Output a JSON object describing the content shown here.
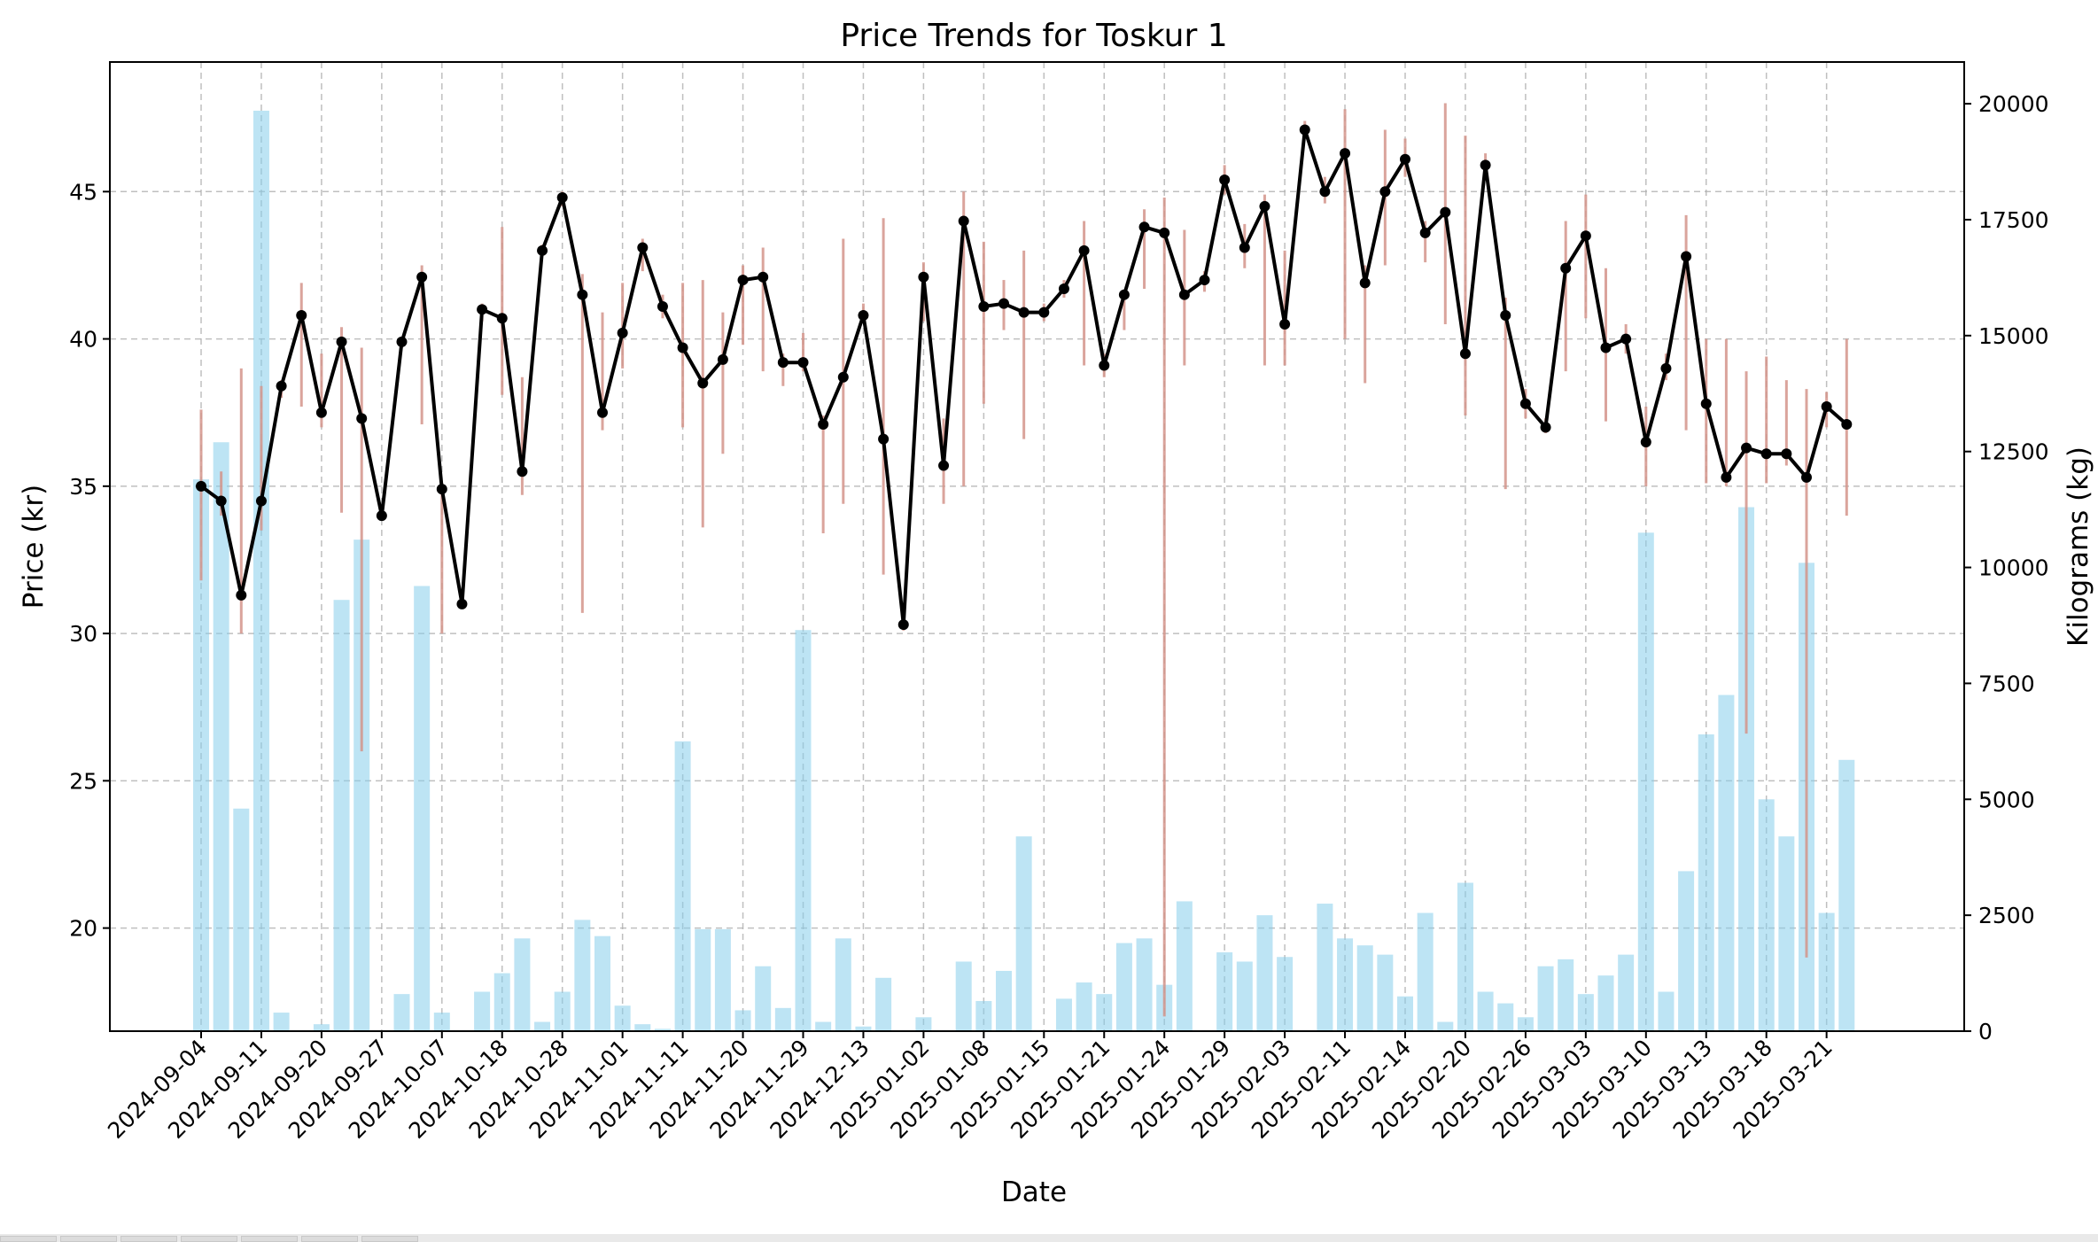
{
  "chart_data": {
    "type": "line",
    "title": "Price Trends for Toskur 1",
    "xlabel": "Date",
    "ylabel": "Price (kr)",
    "y2label": "Kilograms (kg)",
    "ylim": [
      16.5,
      49.4
    ],
    "yticks": [
      20,
      25,
      30,
      35,
      40,
      45
    ],
    "y2lim": [
      0,
      20900
    ],
    "y2ticks": [
      0,
      2500,
      5000,
      7500,
      10000,
      12500,
      15000,
      17500,
      20000
    ],
    "grid": true,
    "colors": {
      "price_line": "#000000",
      "range": "#d4958b",
      "volume": "#87ceeb"
    },
    "xtick_labels": [
      "2024-09-04",
      "2024-09-11",
      "2024-09-20",
      "2024-09-27",
      "2024-10-07",
      "2024-10-18",
      "2024-10-28",
      "2024-11-01",
      "2024-11-11",
      "2024-11-20",
      "2024-11-29",
      "2024-12-13",
      "2025-01-02",
      "2025-01-08",
      "2025-01-15",
      "2025-01-21",
      "2025-01-24",
      "2025-01-29",
      "2025-02-03",
      "2025-02-11",
      "2025-02-14",
      "2025-02-20",
      "2025-02-26",
      "2025-03-03",
      "2025-03-10",
      "2025-03-13",
      "2025-03-18",
      "2025-03-21"
    ],
    "series": [
      {
        "values": [
          35.0,
          34.5,
          31.3,
          34.5,
          38.4,
          40.8,
          37.5,
          39.9,
          37.3,
          34.0,
          39.9,
          42.1,
          34.9,
          31.0,
          41.0,
          40.7,
          35.5,
          43.0,
          44.8,
          41.5,
          37.5,
          40.2,
          43.1,
          41.1,
          39.7,
          38.5,
          39.3,
          42.0,
          42.1,
          39.2,
          39.2,
          37.1,
          38.7,
          40.8,
          36.6,
          30.3,
          42.1,
          35.7,
          44.0,
          41.1,
          41.2,
          40.9,
          40.9,
          41.7,
          43.0,
          39.1,
          41.5,
          43.8,
          43.6,
          41.5,
          42.0,
          45.4,
          43.1,
          44.5,
          40.5,
          47.1,
          45.0,
          46.3,
          41.9,
          45.0,
          46.1,
          43.6,
          44.3,
          39.5,
          45.9,
          40.8,
          37.8,
          37.0,
          42.4,
          43.5,
          39.7,
          40.0,
          36.5,
          39.0,
          42.8,
          37.8,
          35.3,
          36.3,
          36.1,
          36.1,
          35.3,
          37.7,
          37.1
        ]
      }
    ],
    "price_ranges": [
      [
        31.8,
        37.6
      ],
      [
        34.0,
        35.5
      ],
      [
        30.0,
        39.0
      ],
      [
        33.5,
        38.4
      ],
      [
        38.0,
        38.6
      ],
      [
        37.7,
        41.9
      ],
      [
        37.0,
        39.5
      ],
      [
        34.1,
        40.4
      ],
      [
        26.0,
        39.7
      ],
      [
        34.0,
        34.1
      ],
      [
        39.7,
        40.0
      ],
      [
        37.1,
        42.5
      ],
      [
        30.0,
        35.1
      ],
      [
        30.9,
        31.1
      ],
      [
        40.6,
        41.2
      ],
      [
        38.1,
        43.8
      ],
      [
        34.7,
        38.7
      ],
      [
        42.8,
        43.2
      ],
      [
        44.5,
        45.0
      ],
      [
        30.7,
        42.2
      ],
      [
        36.9,
        40.9
      ],
      [
        39.0,
        41.9
      ],
      [
        42.3,
        43.4
      ],
      [
        40.7,
        41.5
      ],
      [
        37.0,
        41.9
      ],
      [
        33.6,
        42.0
      ],
      [
        36.1,
        40.9
      ],
      [
        39.8,
        42.5
      ],
      [
        38.9,
        43.1
      ],
      [
        38.4,
        39.5
      ],
      [
        38.9,
        40.2
      ],
      [
        33.4,
        37.4
      ],
      [
        34.4,
        43.4
      ],
      [
        40.6,
        41.2
      ],
      [
        32.0,
        44.1
      ],
      [
        30.1,
        30.5
      ],
      [
        40.6,
        42.6
      ],
      [
        34.4,
        37.3
      ],
      [
        35.0,
        45.0
      ],
      [
        37.8,
        43.3
      ],
      [
        40.3,
        42.0
      ],
      [
        36.6,
        43.0
      ],
      [
        40.6,
        41.2
      ],
      [
        41.4,
        42.0
      ],
      [
        39.1,
        44.0
      ],
      [
        38.7,
        39.5
      ],
      [
        40.3,
        41.5
      ],
      [
        41.7,
        44.4
      ],
      [
        17.0,
        44.8
      ],
      [
        39.1,
        43.7
      ],
      [
        41.6,
        42.3
      ],
      [
        44.9,
        45.9
      ],
      [
        42.4,
        43.9
      ],
      [
        39.1,
        44.9
      ],
      [
        39.1,
        43.0
      ],
      [
        46.8,
        47.4
      ],
      [
        44.6,
        45.5
      ],
      [
        40.0,
        47.8
      ],
      [
        38.5,
        42.5
      ],
      [
        42.5,
        47.1
      ],
      [
        45.5,
        46.8
      ],
      [
        42.6,
        44.0
      ],
      [
        40.5,
        48.0
      ],
      [
        37.4,
        46.9
      ],
      [
        45.5,
        46.3
      ],
      [
        34.9,
        41.4
      ],
      [
        37.3,
        38.3
      ],
      [
        36.8,
        37.3
      ],
      [
        38.9,
        44.0
      ],
      [
        40.7,
        44.9
      ],
      [
        37.2,
        42.4
      ],
      [
        39.5,
        40.5
      ],
      [
        35.0,
        37.7
      ],
      [
        38.6,
        39.5
      ],
      [
        36.9,
        44.2
      ],
      [
        35.1,
        40.0
      ],
      [
        35.0,
        40.0
      ],
      [
        26.6,
        38.9
      ],
      [
        35.1,
        39.4
      ],
      [
        35.7,
        38.6
      ],
      [
        19.0,
        38.3
      ],
      [
        37.0,
        38.2
      ],
      [
        34.0,
        40.0
      ]
    ],
    "volume_kg": [
      11900,
      12700,
      4800,
      19850,
      400,
      0,
      150,
      9300,
      10600,
      0,
      800,
      9600,
      400,
      0,
      850,
      1250,
      2000,
      200,
      850,
      2400,
      2050,
      550,
      150,
      50,
      6250,
      2200,
      2200,
      450,
      1400,
      500,
      8650,
      200,
      2000,
      100,
      1150,
      0,
      300,
      0,
      1500,
      650,
      1300,
      4200,
      0,
      700,
      1050,
      800,
      1900,
      2000,
      1000,
      2800,
      0,
      1700,
      1500,
      2500,
      1600,
      0,
      2750,
      2000,
      1850,
      1650,
      750,
      2550,
      200,
      3200,
      850,
      600,
      300,
      1400,
      1550,
      800,
      1200,
      1650,
      10750,
      850,
      3450,
      6400,
      7250,
      11300,
      5000,
      4200,
      10100,
      2550,
      5850
    ]
  }
}
